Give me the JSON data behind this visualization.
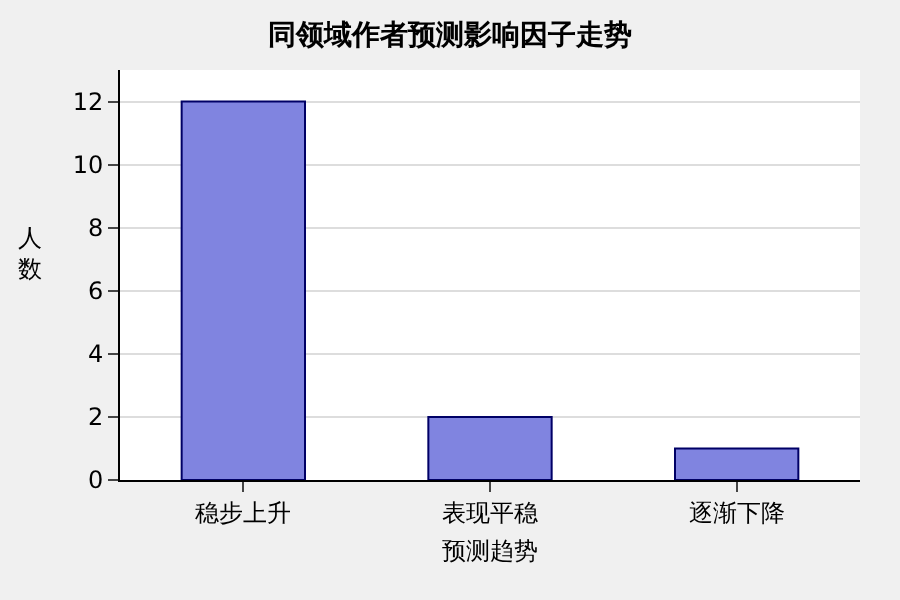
{
  "chart_data": {
    "type": "bar",
    "title": "同领域作者预测影响因子走势",
    "xlabel": "预测趋势",
    "ylabel": "人数",
    "categories": [
      "稳步上升",
      "表现平稳",
      "逐渐下降"
    ],
    "values": [
      12,
      2,
      1
    ],
    "color": "#8084e0",
    "ylim": [
      0,
      13
    ],
    "yticks": [
      0,
      2,
      4,
      6,
      8,
      10,
      12
    ],
    "grid": "y",
    "legend": false
  }
}
